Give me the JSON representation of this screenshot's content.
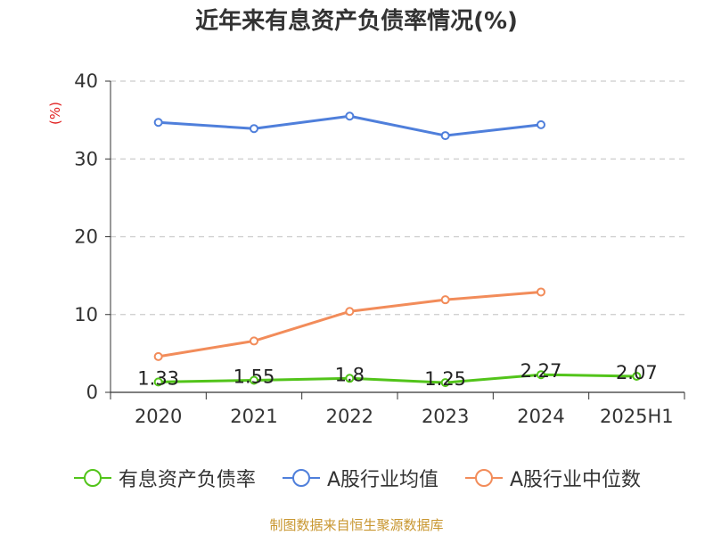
{
  "chart_data": {
    "type": "line",
    "title": "近年来有息资产负债率情况(%)",
    "ylabel": "(%)",
    "xlabel": "",
    "ylim": [
      0,
      40
    ],
    "yticks": [
      0,
      10,
      20,
      30,
      40
    ],
    "categories": [
      "2020",
      "2021",
      "2022",
      "2023",
      "2024",
      "2025H1"
    ],
    "grid": true,
    "legend_position": "bottom",
    "series": [
      {
        "name": "有息资产负债率",
        "color": "#52c41a",
        "values": [
          1.33,
          1.55,
          1.8,
          1.25,
          2.27,
          2.07
        ],
        "labels": [
          "1.33",
          "1.55",
          "1.8",
          "1.25",
          "2.27",
          "2.07"
        ],
        "show_labels": true
      },
      {
        "name": "A股行业均值",
        "color": "#4f7fdb",
        "values": [
          34.7,
          33.9,
          35.5,
          33.0,
          34.4,
          null
        ],
        "show_labels": false
      },
      {
        "name": "A股行业中位数",
        "color": "#f28c5a",
        "values": [
          4.6,
          6.6,
          10.4,
          11.9,
          12.9,
          null
        ],
        "show_labels": false
      }
    ]
  },
  "footer": {
    "source": "制图数据来自恒生聚源数据库"
  }
}
